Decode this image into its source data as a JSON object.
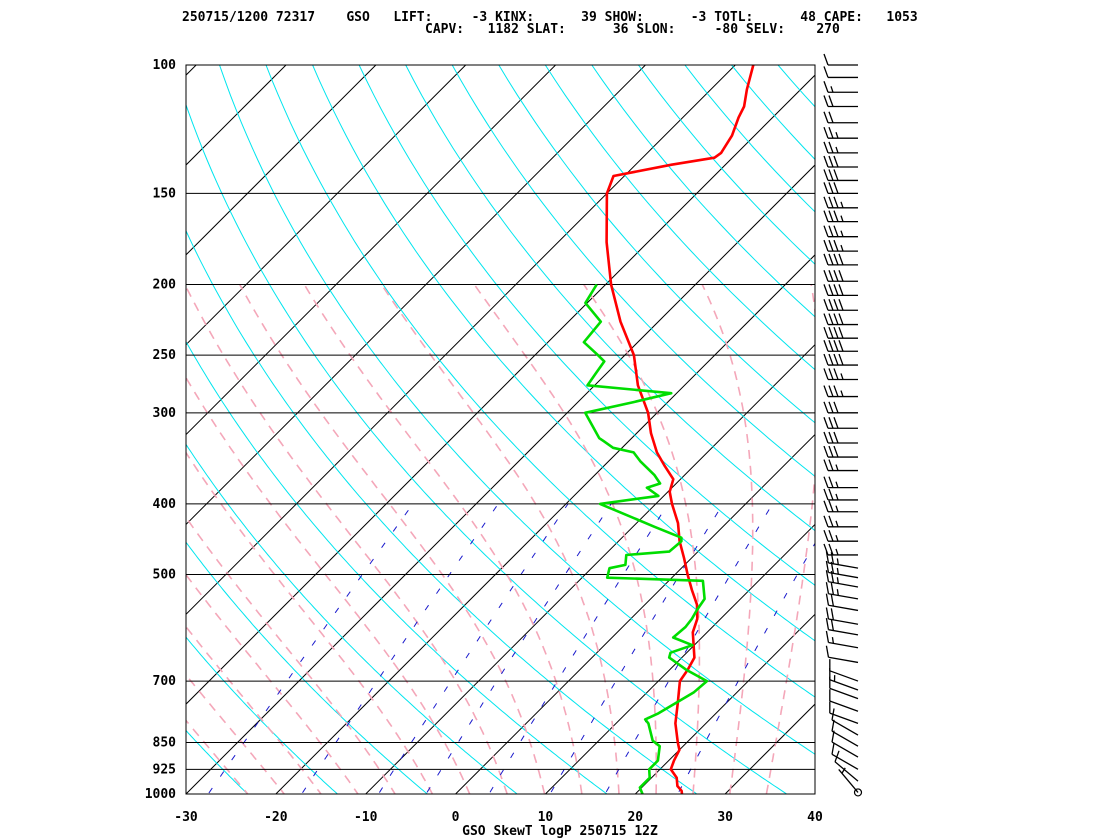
{
  "header": {
    "line1": "250715/1200 72317    GSO   LIFT:     -3 KINX:      39 SHOW:      -3 TOTL:      48 CAPE:   1053",
    "line2": "CAPV:   1182 SLAT:      36 SLON:     -80 SELV:    270"
  },
  "chart_data": {
    "type": "line",
    "title": "GSO SkewT logP 250715 12Z",
    "station": "GSO",
    "station_id": "72317",
    "datetime": "250715/1200",
    "indices": {
      "LIFT": -3,
      "KINX": 39,
      "SHOW": -3,
      "TOTL": 48,
      "CAPE": 1053,
      "CAPV": 1182,
      "SLAT": 36,
      "SLON": -80,
      "SELV": 270
    },
    "xlim": [
      -30,
      40
    ],
    "ylim": [
      1000,
      100
    ],
    "y_scale": "log",
    "x_ticks": [
      -30,
      -20,
      -10,
      0,
      10,
      20,
      30,
      40
    ],
    "y_ticks": [
      1000,
      925,
      850,
      700,
      500,
      400,
      300,
      250,
      200,
      150,
      100
    ],
    "series": [
      {
        "name": "temperature",
        "color": "#ff0000",
        "points": [
          [
            1000,
            25.2
          ],
          [
            990,
            24.8
          ],
          [
            975,
            23.8
          ],
          [
            950,
            22.8
          ],
          [
            925,
            21.2
          ],
          [
            900,
            20.6
          ],
          [
            870,
            20.0
          ],
          [
            850,
            19.0
          ],
          [
            800,
            16.6
          ],
          [
            750,
            14.6
          ],
          [
            700,
            12.4
          ],
          [
            675,
            12.0
          ],
          [
            650,
            11.4
          ],
          [
            600,
            8.4
          ],
          [
            575,
            7.4
          ],
          [
            550,
            5.8
          ],
          [
            525,
            3.6
          ],
          [
            500,
            1.4
          ],
          [
            475,
            -0.8
          ],
          [
            450,
            -3.2
          ],
          [
            425,
            -5.4
          ],
          [
            400,
            -8.2
          ],
          [
            385,
            -9.8
          ],
          [
            370,
            -10.8
          ],
          [
            355,
            -13.2
          ],
          [
            340,
            -15.6
          ],
          [
            320,
            -18.4
          ],
          [
            300,
            -21.0
          ],
          [
            275,
            -25.2
          ],
          [
            250,
            -29.0
          ],
          [
            225,
            -34.2
          ],
          [
            200,
            -39.4
          ],
          [
            175,
            -44.6
          ],
          [
            150,
            -50.0
          ],
          [
            142,
            -51.2
          ],
          [
            137,
            -46.0
          ],
          [
            134,
            -42.0
          ],
          [
            132,
            -41.8
          ],
          [
            125,
            -42.5
          ],
          [
            118,
            -43.8
          ],
          [
            114,
            -44.4
          ],
          [
            108,
            -46.0
          ],
          [
            100,
            -48.0
          ]
        ]
      },
      {
        "name": "dewpoint",
        "color": "#00dd00",
        "points": [
          [
            1000,
            20.8
          ],
          [
            980,
            19.8
          ],
          [
            950,
            19.8
          ],
          [
            925,
            18.8
          ],
          [
            900,
            18.8
          ],
          [
            860,
            17.4
          ],
          [
            845,
            16.0
          ],
          [
            800,
            13.6
          ],
          [
            790,
            12.8
          ],
          [
            775,
            13.6
          ],
          [
            725,
            15.2
          ],
          [
            700,
            15.4
          ],
          [
            675,
            11.8
          ],
          [
            650,
            8.6
          ],
          [
            640,
            8.2
          ],
          [
            625,
            9.8
          ],
          [
            610,
            6.8
          ],
          [
            590,
            7.0
          ],
          [
            575,
            6.8
          ],
          [
            560,
            6.4
          ],
          [
            540,
            6.0
          ],
          [
            510,
            3.8
          ],
          [
            505,
            -7.2
          ],
          [
            490,
            -8.0
          ],
          [
            485,
            -6.6
          ],
          [
            470,
            -7.6
          ],
          [
            465,
            -3.2
          ],
          [
            450,
            -3.0
          ],
          [
            445,
            -3.4
          ],
          [
            430,
            -7.6
          ],
          [
            400,
            -16.2
          ],
          [
            390,
            -10.6
          ],
          [
            380,
            -12.8
          ],
          [
            375,
            -11.8
          ],
          [
            365,
            -13.4
          ],
          [
            350,
            -16.4
          ],
          [
            340,
            -18.2
          ],
          [
            335,
            -21.0
          ],
          [
            328,
            -22.8
          ],
          [
            325,
            -23.6
          ],
          [
            300,
            -28.0
          ],
          [
            290,
            -23.8
          ],
          [
            282,
            -20.6
          ],
          [
            275,
            -30.8
          ],
          [
            265,
            -31.2
          ],
          [
            255,
            -31.6
          ],
          [
            250,
            -33.0
          ],
          [
            240,
            -36.0
          ],
          [
            225,
            -36.4
          ],
          [
            212,
            -40.2
          ],
          [
            200,
            -41.0
          ]
        ]
      }
    ],
    "wind_barbs": [
      [
        995,
        320,
        5
      ],
      [
        960,
        310,
        10
      ],
      [
        925,
        300,
        10
      ],
      [
        890,
        300,
        10
      ],
      [
        860,
        300,
        10
      ],
      [
        830,
        300,
        10
      ],
      [
        800,
        290,
        10
      ],
      [
        770,
        290,
        10
      ],
      [
        740,
        290,
        10
      ],
      [
        720,
        290,
        15
      ],
      [
        700,
        290,
        10
      ],
      [
        660,
        280,
        10
      ],
      [
        630,
        280,
        15
      ],
      [
        605,
        280,
        20
      ],
      [
        585,
        280,
        20
      ],
      [
        560,
        280,
        20
      ],
      [
        540,
        280,
        25
      ],
      [
        520,
        280,
        25
      ],
      [
        505,
        280,
        25
      ],
      [
        490,
        280,
        25
      ],
      [
        470,
        270,
        25
      ],
      [
        450,
        270,
        25
      ],
      [
        430,
        270,
        25
      ],
      [
        410,
        270,
        25
      ],
      [
        395,
        270,
        25
      ],
      [
        380,
        270,
        25
      ],
      [
        360,
        270,
        25
      ],
      [
        345,
        270,
        30
      ],
      [
        330,
        270,
        30
      ],
      [
        315,
        270,
        30
      ],
      [
        300,
        270,
        30
      ],
      [
        285,
        270,
        35
      ],
      [
        270,
        270,
        35
      ],
      [
        258,
        270,
        40
      ],
      [
        247,
        270,
        40
      ],
      [
        237,
        270,
        40
      ],
      [
        227,
        270,
        40
      ],
      [
        217,
        270,
        40
      ],
      [
        207,
        270,
        40
      ],
      [
        198,
        270,
        40
      ],
      [
        188,
        270,
        40
      ],
      [
        180,
        270,
        35
      ],
      [
        172,
        270,
        35
      ],
      [
        164,
        270,
        35
      ],
      [
        157,
        270,
        35
      ],
      [
        150,
        270,
        30
      ],
      [
        144,
        270,
        30
      ],
      [
        138,
        270,
        30
      ],
      [
        132,
        270,
        25
      ],
      [
        126,
        270,
        25
      ],
      [
        120,
        270,
        20
      ],
      [
        114,
        270,
        20
      ],
      [
        109,
        270,
        15
      ],
      [
        104,
        270,
        10
      ],
      [
        100,
        270,
        10
      ]
    ]
  }
}
